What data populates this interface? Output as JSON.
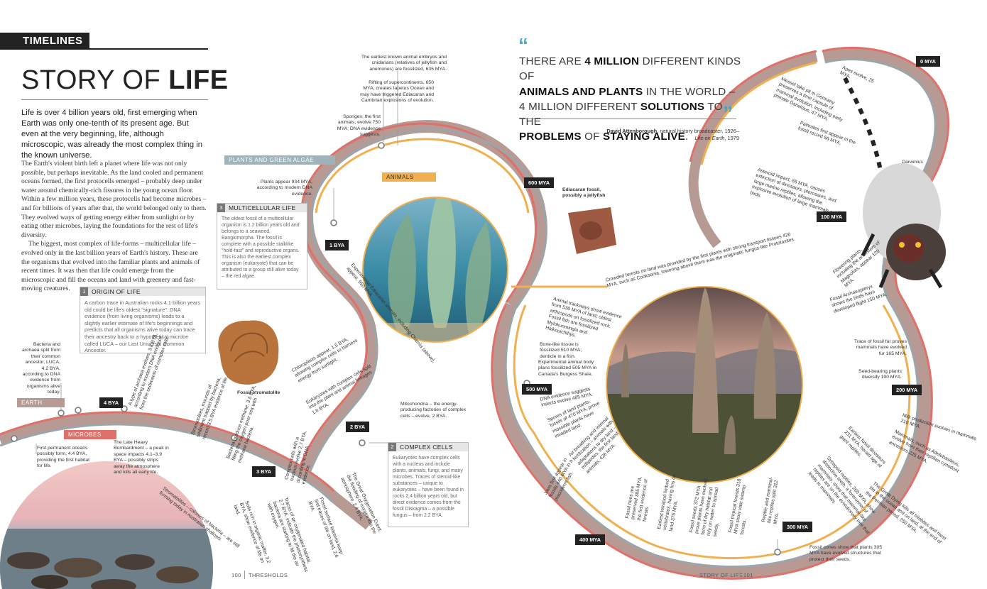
{
  "header": {
    "section_tag": "TIMELINES"
  },
  "title": {
    "light": "STORY OF",
    "bold": "LIFE"
  },
  "intro": "Life is over 4 billion years old, first emerging when Earth was only one-tenth of its present age. But even at the very beginning, life, although microscopic, was already the most complex thing in the known universe.",
  "body": {
    "p1": "The Earth's violent birth left a planet where life was not only possible, but perhaps inevitable. As the land cooled and permanent oceans formed, the first protocells emerged – probably deep under water around chemically-rich fissures in the young ocean floor. Within a few million years, these protocells had become microbes – and for billions of years after that, the world belonged only to them. They evolved ways of getting energy either from sunlight or by eating other microbes, laying the foundations for the rest of life's diversity.",
    "p2": "The biggest, most complex of life-forms – multicellular life – evolved only in the last billion years of Earth's history. These are the organisms that evolved into the familiar plants and animals of recent times. It was then that life could emerge from the microscopic and fill the oceans and land with greenery and fast-moving creatures."
  },
  "boxes": {
    "origin": {
      "num": "1",
      "title": "ORIGIN OF LIFE",
      "text": "A carbon trace in Australian rocks 4.1 billion years old could be life's oldest \"signature\". DNA evidence (from living organisms) leads to a slightly earlier estimate of life's beginnings and predicts that all organisms alive today can trace their ancestry back to a hypothetical microbe called LUCA – our Last Universal Common Ancestor."
    },
    "multicellular": {
      "num": "3",
      "title": "MULTICELLULAR LIFE",
      "text": "The oldest fossil of a multicellular organism is 1.2 billion years old and belongs to a seaweed, Bangiomorpha. The fossil is complete with a possible stalklike \"hold-fast\" and reproductive organs. This is also the earliest complex organism (eukaryote) that can be attributed to a group still alive today – the red algae."
    },
    "complex": {
      "num": "2",
      "title": "COMPLEX CELLS",
      "text": "Eukaryotes have complex cells with a nucleus and include plants, animals, fungi, and many microbes. Traces of steroid-like substances – unique to eukaryotes – have been found in rocks 2.4 billion years old, but direct evidence comes from the fossil Diskagma – a possible fungus – from 2.2 BYA."
    }
  },
  "labels": {
    "plants": "PLANTS AND GREEN ALGAE",
    "animals": "ANIMALS",
    "earth": "EARTH",
    "microbes": "MICROBES"
  },
  "time_tags": {
    "bya4": "4 BYA",
    "bya3": "3 BYA",
    "bya2": "2 BYA",
    "bya1": "1 BYA",
    "mya600": "600 MYA",
    "mya500": "500 MYA",
    "mya400": "400 MYA",
    "mya300": "300 MYA",
    "mya200": "200 MYA",
    "mya100": "100 MYA",
    "mya0": "0 MYA"
  },
  "quote": {
    "l1a": "THERE ARE ",
    "l1b": "4 MILLION",
    "l1c": " DIFFERENT KINDS OF",
    "l2a": "ANIMALS AND PLANTS",
    "l2b": " IN THE WORLD –",
    "l3a": "4 MILLION DIFFERENT ",
    "l3b": "SOLUTIONS",
    "l3c": " TO THE",
    "l4a": "PROBLEMS",
    "l4b": " OF ",
    "l4c": "STAYING ALIVE",
    "l4d": ".",
    "author": "David Attenborough",
    "role": ", natural history broadcaster, 1926–",
    "work": "Life on Earth",
    "year": ", 1979"
  },
  "captions": {
    "stromatolite": "Fossil stromatolite",
    "ediacaran": "Ediacaran fossil, possibly a jellyfish",
    "darwinius": "Darwinius"
  },
  "events": {
    "embryos": "The earliest known animal embryos and cnidarians (relatives of jellyfish and anemones) are fossilized, 635 MYA.",
    "embryos_b": "The earliest known animal embryos",
    "rifting": "Rifting of supercontinents, 650 MYA, creates Iapetus Ocean and may have triggered Ediacaran and Cambrian explosions of evolution.",
    "rifting_b": "Rifting of supercontinents,",
    "sponges": "Sponges, the first animals, evolve 750 MYA; DNA evidence suggests.",
    "plants_appear": "Plants appear 934 MYA, according to modern DNA evidence.",
    "bacteria": "Bacteria and archaea split from their common ancestor, LUCA, 4.2 BYA, according to DNA evidence from organisms alive today.",
    "oceans": "First permanent oceans possibly form, 4.4 BYA, providing the first habitat for life.",
    "bombardment": "The Late Heavy Bombardment – a peak in space impacts 4.1–3.9 BYA – possibly strips away the atmosphere and kills all early life.",
    "mitochondria": "Mitochondria – the energy-producing factories of complex cells – evolve, 2 BYA.",
    "fossil_cones": "Fossil cones show that plants 305 MYA have evolved structures that protect their seeds.",
    "ape": "Apes evolve, 25 MYA.",
    "messel": "Messel lake pit in Germany preserves a time capsule of mammal evolution, including early primate Darwinius, 47 MYA.",
    "palmates": "Palmates first appear in the fossil record 56 MYA.",
    "asteroid": "Asteroid impact, 65 MYA, causes extinction of dinosaurs, pterosaurs, and large marine reptiles, allowing the explosive evolution of large mammals and birds.",
    "flowering": "Flowering plants, including the ancestors of Magnolias, appear 120 MYA.",
    "archaeopteryx": "Fossil Archaeopteryx shows the birds have developed flight 150 MYA.",
    "fur": "Trace of fossil fur proves mammals have evolved fur 165 MYA.",
    "seed": "Seed-bearing plants diversify 190 MYA.",
    "milk": "Milk production evolves in mammals 210 MYA.",
    "mammals": "Mammals, such as Adelobasileus, evolve from their reptilian cynodont ancestors 225 MYA.",
    "dinosaur": "Earliest fossil dinosaurs 231 MYA, herald age of giant reptiles.",
    "synapsid": "Synapsid reptiles, 260 MYA, show distinctive teeth, a forerunner of mammals, show that mammal-like reptiles are on the evolutionary tree that leads to mammals.",
    "dying": "The Great Dying kills all trilobites and most life in the ocean and on land, at the end of the Permian period, 250 MYA.",
    "cooksonia": "Crowded forests on land was provided by the first plants with strong transport tissues 420 MYA, such as Cooksonia, towering above them was the enigmatic fungus-like Prototaxites.",
    "trackways": "Animal trackways show evidence from 530 MYA of land; oldest arthropods on fossilized rock. Fossil fish are fossilized Mylokunmingia and Haikouichthys.",
    "bone": "Bone-like tissue is fossilized 510 MYA; denticle in a fish.",
    "bodyplans": "Experimental animal body plans fossilized 505 MYA in Canada's Burgess Shale.",
    "dna_insects": "DNA evidence suggests insects evolve 485 MYA.",
    "spores": "Spores of land plants, fossils of 470 MYA, prove mossible plants have invaded land.",
    "air": "Air breathing and internal fertilization – animals with adaptations to dry land – millipedes, the first land animals, 428 MYA.",
    "jaws": "Jaws first appear in fossils 440 MYA in a placoderm fish.",
    "fossil_trees": "Fossil trees are preserved 385 MYA, the first evidence of forests.",
    "tetrapod": "Earliest tetrapod limbed vertebrates, having fins on land 375 MYA.",
    "seeds": "Fossil seeds 372 MYA prove plants have evolved form of dry habitat and rely on water to spread seeds.",
    "tropical": "Fossil tropical forests 318 MYA show vast swamp forests.",
    "amniote": "Reptile and mammal-like reptiles split 312 MYA.",
    "ediacaran_fossils": "Experimental Ediacaran animals, including Charnia (above), appear, 550 MYA",
    "chloroplasts": "Chloroplasts appear, 1.5 BYA, allowing complex cells to harness energy from sunlight.",
    "eukaryote_genes": "Eukaryotes with complex cells split into the plant and animal lineages 1.6 BYA.",
    "archaea_type": "A type of archaea evolves, 3.8 BYA, according to modern DNA evidence, from the sediments of complex cells.",
    "strom_1": "Stromatolites, mounds of sediment trapped by bacteria, record 3.5 BYA evidence of life.",
    "bact_methane": "Bacteria produce methane, 3.5 BYA, filling the oxygen-poor sea with methane bacteria.",
    "complex_cells": "Complex cells with a nucleus evolve 2.7 BYA, according to DNA evidence.",
    "soils": "Soils rich in organic matter, 3.2 BYA, show evidence of life on land.",
    "oxygen": "Traces of an oxygenated habitat, 2.7 BYA, indicate the photosynthetic bacteria are starting to fill the air with oxygen.",
    "fossils_surface": "Fossil surface bacteria keep first traces of life on land, 2.6 BYA.",
    "great_oxy": "The Great Oxygenation Event, the flooding of oxygen into the atmosphere, 2.4 BYA.",
    "strom_2": "Stromatolites – colonies of bacteria – are still forming today in Australian shallows."
  },
  "footer": {
    "left_page": "100",
    "left_section": "THRESHOLDS",
    "right_section": "STORY OF LIFE",
    "right_page": "101"
  },
  "colors": {
    "band_red": "#e0706a",
    "band_orange": "#f0b050",
    "band_grey": "#9aa6aa",
    "band_brown": "#b0887c",
    "accent_blue": "#4aa3c5"
  }
}
